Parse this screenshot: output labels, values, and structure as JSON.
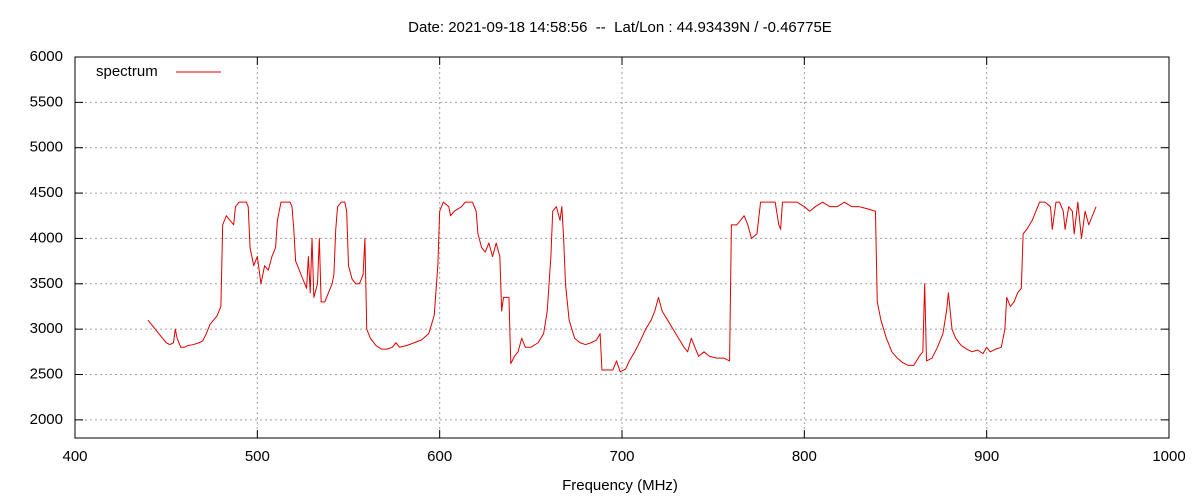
{
  "chart_data": {
    "type": "line",
    "title": "Date: 2021-09-18 14:58:56  --  Lat/Lon : 44.93439N / -0.46775E",
    "x_label": "Frequency (MHz)",
    "legend_position": "top-left",
    "grid": true,
    "xlim": [
      400,
      1000
    ],
    "xticks": [
      400,
      500,
      600,
      700,
      800,
      900,
      1000
    ],
    "ylim": [
      1800,
      6000
    ],
    "yticks": [
      2000,
      2500,
      3000,
      3500,
      4000,
      4500,
      5000,
      5500,
      6000
    ],
    "x": [
      440,
      442,
      444,
      446,
      448,
      450,
      452,
      454,
      455,
      456,
      458,
      460,
      462,
      465,
      468,
      470,
      472,
      474,
      476,
      478,
      480,
      481,
      483,
      485,
      487,
      488,
      490,
      492,
      494,
      495,
      496,
      498,
      500,
      502,
      504,
      506,
      508,
      510,
      511,
      512,
      513,
      515,
      518,
      519,
      520,
      521,
      523,
      525,
      527,
      528,
      529,
      530,
      531,
      533,
      534,
      535,
      537,
      539,
      541,
      542,
      543,
      544,
      546,
      548,
      549,
      550,
      552,
      554,
      556,
      558,
      559,
      560,
      562,
      565,
      568,
      571,
      574,
      576,
      578,
      582,
      586,
      590,
      594,
      597,
      599,
      600,
      602,
      605,
      606,
      608,
      612,
      614,
      618,
      620,
      621,
      623,
      625,
      627,
      629,
      631,
      633,
      634,
      635,
      638,
      639,
      641,
      643,
      645,
      647,
      650,
      654,
      657,
      659,
      661,
      662,
      664,
      666,
      667,
      668,
      669,
      671,
      674,
      677,
      680,
      683,
      686,
      688,
      689,
      692,
      695,
      697,
      699,
      702,
      704,
      707,
      710,
      713,
      716,
      718,
      720,
      722,
      725,
      728,
      731,
      734,
      736,
      738,
      740,
      742,
      745,
      748,
      752,
      756,
      759,
      760,
      763,
      765,
      767,
      769,
      771,
      774,
      776,
      780,
      784,
      786,
      787,
      788,
      792,
      796,
      800,
      803,
      806,
      810,
      814,
      818,
      822,
      826,
      830,
      834,
      839,
      840,
      842,
      845,
      848,
      851,
      854,
      857,
      860,
      863,
      865,
      866,
      867,
      870,
      873,
      876,
      878,
      879,
      881,
      883,
      886,
      889,
      892,
      895,
      898,
      900,
      902,
      905,
      908,
      910,
      911,
      913,
      915,
      917,
      919,
      920,
      922,
      925,
      927,
      929,
      932,
      935,
      936,
      938,
      940,
      942,
      943,
      945,
      947,
      948,
      950,
      952,
      954,
      956,
      958,
      960
    ],
    "series": [
      {
        "name": "spectrum",
        "color": "#e00000",
        "values": [
          3100,
          3050,
          3000,
          2950,
          2900,
          2850,
          2830,
          2850,
          3000,
          2900,
          2800,
          2800,
          2820,
          2830,
          2850,
          2870,
          2950,
          3050,
          3100,
          3150,
          3250,
          4150,
          4250,
          4200,
          4150,
          4350,
          4400,
          4400,
          4400,
          4350,
          3900,
          3700,
          3800,
          3500,
          3700,
          3650,
          3800,
          3900,
          4200,
          4300,
          4400,
          4400,
          4400,
          4350,
          4100,
          3750,
          3650,
          3550,
          3450,
          3800,
          3400,
          4000,
          3350,
          3500,
          4000,
          3300,
          3300,
          3400,
          3500,
          3600,
          4100,
          4350,
          4400,
          4400,
          4300,
          3700,
          3550,
          3500,
          3500,
          3600,
          4000,
          3000,
          2900,
          2820,
          2780,
          2780,
          2800,
          2850,
          2800,
          2820,
          2850,
          2880,
          2950,
          3150,
          3700,
          4300,
          4400,
          4350,
          4250,
          4300,
          4350,
          4400,
          4400,
          4300,
          4050,
          3900,
          3850,
          3950,
          3800,
          3950,
          3800,
          3200,
          3350,
          3350,
          2620,
          2700,
          2750,
          2900,
          2800,
          2800,
          2850,
          2950,
          3200,
          3800,
          4300,
          4350,
          4200,
          4350,
          4000,
          3500,
          3100,
          2900,
          2850,
          2830,
          2850,
          2880,
          2950,
          2550,
          2550,
          2550,
          2650,
          2530,
          2560,
          2650,
          2750,
          2870,
          3000,
          3100,
          3200,
          3350,
          3200,
          3100,
          3000,
          2900,
          2800,
          2750,
          2900,
          2800,
          2700,
          2750,
          2700,
          2680,
          2680,
          2650,
          4150,
          4150,
          4200,
          4250,
          4150,
          4000,
          4050,
          4400,
          4400,
          4400,
          4150,
          4100,
          4400,
          4400,
          4400,
          4350,
          4300,
          4350,
          4400,
          4350,
          4350,
          4400,
          4350,
          4350,
          4330,
          4300,
          3300,
          3100,
          2900,
          2750,
          2680,
          2630,
          2600,
          2600,
          2700,
          2750,
          3500,
          2650,
          2680,
          2800,
          2950,
          3200,
          3400,
          3000,
          2900,
          2820,
          2780,
          2750,
          2770,
          2730,
          2800,
          2750,
          2780,
          2800,
          3000,
          3350,
          3250,
          3300,
          3400,
          3450,
          4050,
          4100,
          4200,
          4300,
          4400,
          4400,
          4350,
          4100,
          4400,
          4400,
          4300,
          4100,
          4350,
          4300,
          4050,
          4400,
          4000,
          4300,
          4150,
          4250,
          4350
        ]
      }
    ]
  }
}
